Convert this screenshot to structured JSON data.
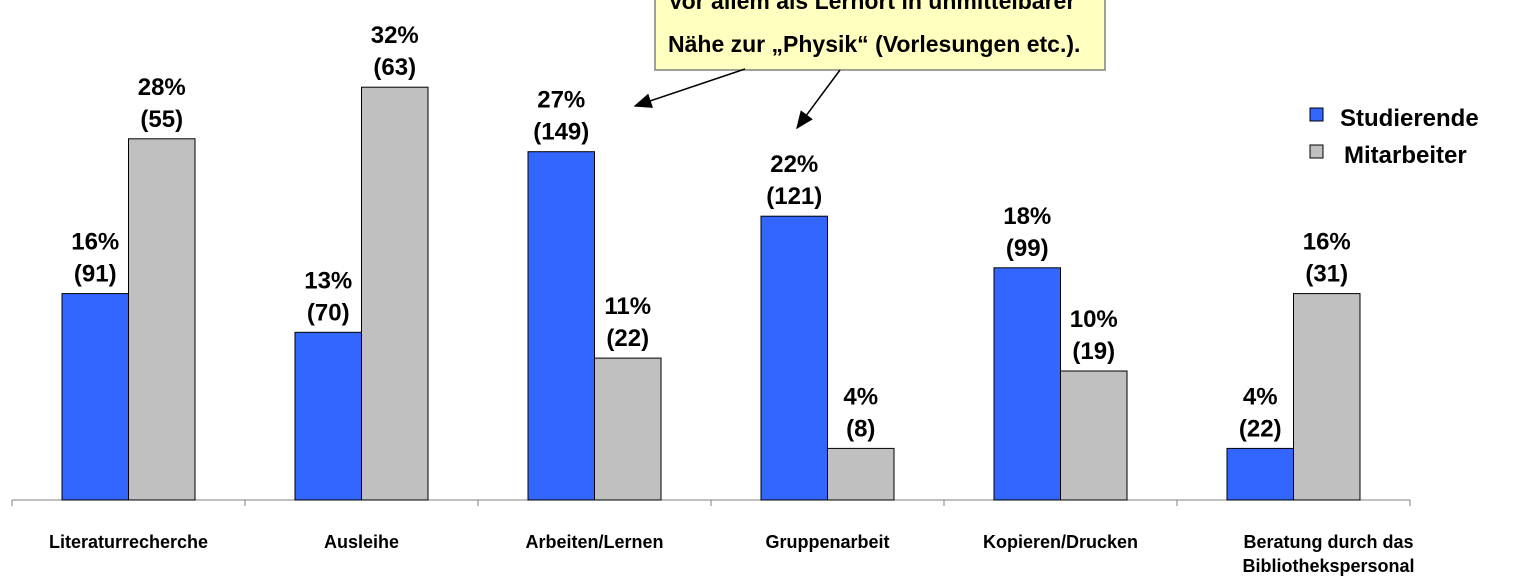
{
  "chart_data": {
    "type": "bar",
    "categories": [
      "Literaturrecherche",
      "Ausleihe",
      "Arbeiten/Lernen",
      "Gruppenarbeit",
      "Kopieren/Drucken",
      [
        "Beratung durch das",
        "Bibliothekspersonal"
      ]
    ],
    "series": [
      {
        "name": "Studierende",
        "color": "#3366ff",
        "values": [
          16,
          13,
          27,
          22,
          18,
          4
        ],
        "value_labels": [
          "16%",
          "13%",
          "27%",
          "22%",
          "18%",
          "4%"
        ],
        "counts": [
          91,
          70,
          149,
          121,
          99,
          22
        ],
        "count_labels": [
          "(91)",
          "(70)",
          "(149)",
          "(121)",
          "(99)",
          "(22)"
        ]
      },
      {
        "name": "Mitarbeiter",
        "color": "#c0c0c0",
        "values": [
          28,
          32,
          11,
          4,
          10,
          16
        ],
        "value_labels": [
          "28%",
          "32%",
          "11%",
          "4%",
          "10%",
          "16%"
        ],
        "counts": [
          55,
          63,
          22,
          8,
          19,
          31
        ],
        "count_labels": [
          "(55)",
          "(63)",
          "(22)",
          "(8)",
          "(19)",
          "(31)"
        ]
      }
    ],
    "annotation": [
      "Vor allem als Lernort in unmittelbarer",
      "Nähe zur „Physik“ (Vorlesungen etc.)."
    ]
  }
}
